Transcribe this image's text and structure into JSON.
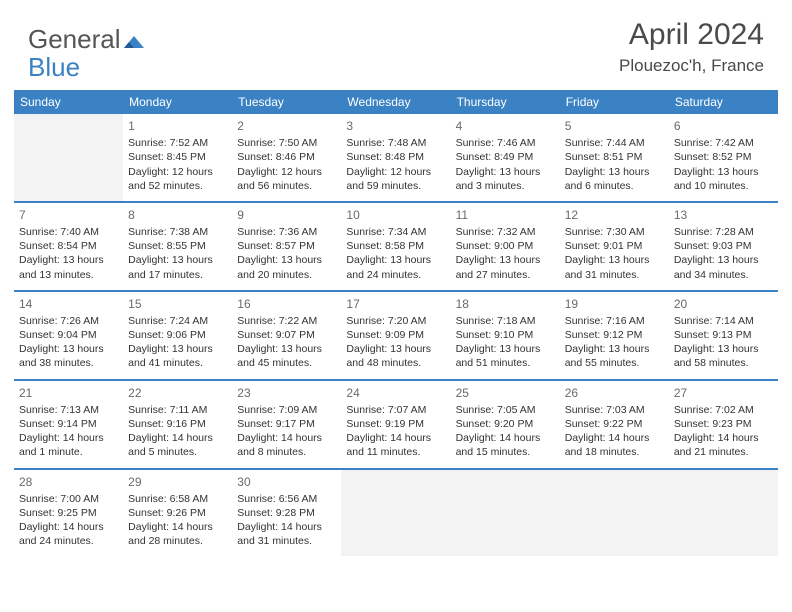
{
  "logo": {
    "text1": "General",
    "text2": "Blue"
  },
  "title": "April 2024",
  "location": "Plouezoc'h, France",
  "colors": {
    "header_bg": "#3b82c4",
    "header_text": "#ffffff",
    "row_border": "#3b82c4",
    "empty_bg": "#f3f3f3",
    "logo_gray": "#555555",
    "logo_blue": "#3b82c4",
    "title_color": "#4a4a4a",
    "cell_text": "#333333",
    "daynum_color": "#6a6a6a"
  },
  "weekdays": [
    "Sunday",
    "Monday",
    "Tuesday",
    "Wednesday",
    "Thursday",
    "Friday",
    "Saturday"
  ],
  "weeks": [
    [
      null,
      {
        "n": "1",
        "sr": "Sunrise: 7:52 AM",
        "ss": "Sunset: 8:45 PM",
        "d1": "Daylight: 12 hours",
        "d2": "and 52 minutes."
      },
      {
        "n": "2",
        "sr": "Sunrise: 7:50 AM",
        "ss": "Sunset: 8:46 PM",
        "d1": "Daylight: 12 hours",
        "d2": "and 56 minutes."
      },
      {
        "n": "3",
        "sr": "Sunrise: 7:48 AM",
        "ss": "Sunset: 8:48 PM",
        "d1": "Daylight: 12 hours",
        "d2": "and 59 minutes."
      },
      {
        "n": "4",
        "sr": "Sunrise: 7:46 AM",
        "ss": "Sunset: 8:49 PM",
        "d1": "Daylight: 13 hours",
        "d2": "and 3 minutes."
      },
      {
        "n": "5",
        "sr": "Sunrise: 7:44 AM",
        "ss": "Sunset: 8:51 PM",
        "d1": "Daylight: 13 hours",
        "d2": "and 6 minutes."
      },
      {
        "n": "6",
        "sr": "Sunrise: 7:42 AM",
        "ss": "Sunset: 8:52 PM",
        "d1": "Daylight: 13 hours",
        "d2": "and 10 minutes."
      }
    ],
    [
      {
        "n": "7",
        "sr": "Sunrise: 7:40 AM",
        "ss": "Sunset: 8:54 PM",
        "d1": "Daylight: 13 hours",
        "d2": "and 13 minutes."
      },
      {
        "n": "8",
        "sr": "Sunrise: 7:38 AM",
        "ss": "Sunset: 8:55 PM",
        "d1": "Daylight: 13 hours",
        "d2": "and 17 minutes."
      },
      {
        "n": "9",
        "sr": "Sunrise: 7:36 AM",
        "ss": "Sunset: 8:57 PM",
        "d1": "Daylight: 13 hours",
        "d2": "and 20 minutes."
      },
      {
        "n": "10",
        "sr": "Sunrise: 7:34 AM",
        "ss": "Sunset: 8:58 PM",
        "d1": "Daylight: 13 hours",
        "d2": "and 24 minutes."
      },
      {
        "n": "11",
        "sr": "Sunrise: 7:32 AM",
        "ss": "Sunset: 9:00 PM",
        "d1": "Daylight: 13 hours",
        "d2": "and 27 minutes."
      },
      {
        "n": "12",
        "sr": "Sunrise: 7:30 AM",
        "ss": "Sunset: 9:01 PM",
        "d1": "Daylight: 13 hours",
        "d2": "and 31 minutes."
      },
      {
        "n": "13",
        "sr": "Sunrise: 7:28 AM",
        "ss": "Sunset: 9:03 PM",
        "d1": "Daylight: 13 hours",
        "d2": "and 34 minutes."
      }
    ],
    [
      {
        "n": "14",
        "sr": "Sunrise: 7:26 AM",
        "ss": "Sunset: 9:04 PM",
        "d1": "Daylight: 13 hours",
        "d2": "and 38 minutes."
      },
      {
        "n": "15",
        "sr": "Sunrise: 7:24 AM",
        "ss": "Sunset: 9:06 PM",
        "d1": "Daylight: 13 hours",
        "d2": "and 41 minutes."
      },
      {
        "n": "16",
        "sr": "Sunrise: 7:22 AM",
        "ss": "Sunset: 9:07 PM",
        "d1": "Daylight: 13 hours",
        "d2": "and 45 minutes."
      },
      {
        "n": "17",
        "sr": "Sunrise: 7:20 AM",
        "ss": "Sunset: 9:09 PM",
        "d1": "Daylight: 13 hours",
        "d2": "and 48 minutes."
      },
      {
        "n": "18",
        "sr": "Sunrise: 7:18 AM",
        "ss": "Sunset: 9:10 PM",
        "d1": "Daylight: 13 hours",
        "d2": "and 51 minutes."
      },
      {
        "n": "19",
        "sr": "Sunrise: 7:16 AM",
        "ss": "Sunset: 9:12 PM",
        "d1": "Daylight: 13 hours",
        "d2": "and 55 minutes."
      },
      {
        "n": "20",
        "sr": "Sunrise: 7:14 AM",
        "ss": "Sunset: 9:13 PM",
        "d1": "Daylight: 13 hours",
        "d2": "and 58 minutes."
      }
    ],
    [
      {
        "n": "21",
        "sr": "Sunrise: 7:13 AM",
        "ss": "Sunset: 9:14 PM",
        "d1": "Daylight: 14 hours",
        "d2": "and 1 minute."
      },
      {
        "n": "22",
        "sr": "Sunrise: 7:11 AM",
        "ss": "Sunset: 9:16 PM",
        "d1": "Daylight: 14 hours",
        "d2": "and 5 minutes."
      },
      {
        "n": "23",
        "sr": "Sunrise: 7:09 AM",
        "ss": "Sunset: 9:17 PM",
        "d1": "Daylight: 14 hours",
        "d2": "and 8 minutes."
      },
      {
        "n": "24",
        "sr": "Sunrise: 7:07 AM",
        "ss": "Sunset: 9:19 PM",
        "d1": "Daylight: 14 hours",
        "d2": "and 11 minutes."
      },
      {
        "n": "25",
        "sr": "Sunrise: 7:05 AM",
        "ss": "Sunset: 9:20 PM",
        "d1": "Daylight: 14 hours",
        "d2": "and 15 minutes."
      },
      {
        "n": "26",
        "sr": "Sunrise: 7:03 AM",
        "ss": "Sunset: 9:22 PM",
        "d1": "Daylight: 14 hours",
        "d2": "and 18 minutes."
      },
      {
        "n": "27",
        "sr": "Sunrise: 7:02 AM",
        "ss": "Sunset: 9:23 PM",
        "d1": "Daylight: 14 hours",
        "d2": "and 21 minutes."
      }
    ],
    [
      {
        "n": "28",
        "sr": "Sunrise: 7:00 AM",
        "ss": "Sunset: 9:25 PM",
        "d1": "Daylight: 14 hours",
        "d2": "and 24 minutes."
      },
      {
        "n": "29",
        "sr": "Sunrise: 6:58 AM",
        "ss": "Sunset: 9:26 PM",
        "d1": "Daylight: 14 hours",
        "d2": "and 28 minutes."
      },
      {
        "n": "30",
        "sr": "Sunrise: 6:56 AM",
        "ss": "Sunset: 9:28 PM",
        "d1": "Daylight: 14 hours",
        "d2": "and 31 minutes."
      },
      null,
      null,
      null,
      null
    ]
  ]
}
